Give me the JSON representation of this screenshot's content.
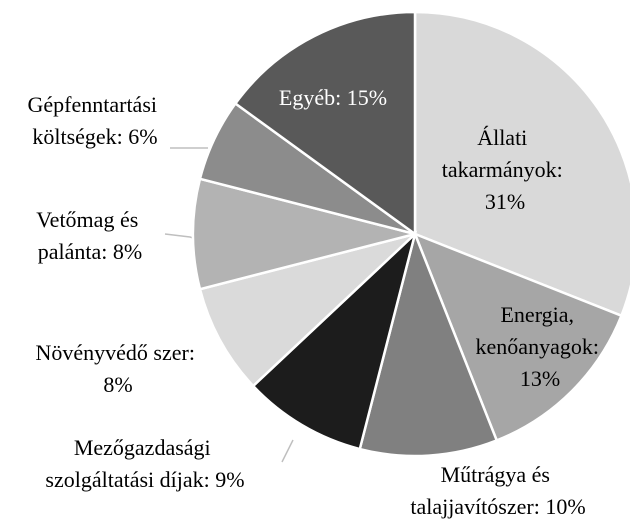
{
  "chart_data": {
    "type": "pie",
    "values": [
      31,
      13,
      10,
      9,
      8,
      8,
      6,
      15
    ],
    "value_labels": [
      "Állati takarmányok: 31%",
      "Energia, kenőanyagok: 13%",
      "Műtrágya és talajjavítószer: 10%",
      "Mezőgazdasági szolgáltatási díjak: 9%",
      "Növényvédő szer: 8%",
      "Vetőmag és palánta: 8%",
      "Gépfenntartási költségek: 6%",
      "Egyéb: 15%"
    ],
    "colors": [
      "#d9d9d9",
      "#a6a6a6",
      "#808080",
      "#1c1c1c",
      "#dadada",
      "#b3b3b3",
      "#8c8c8c",
      "#595959"
    ]
  }
}
